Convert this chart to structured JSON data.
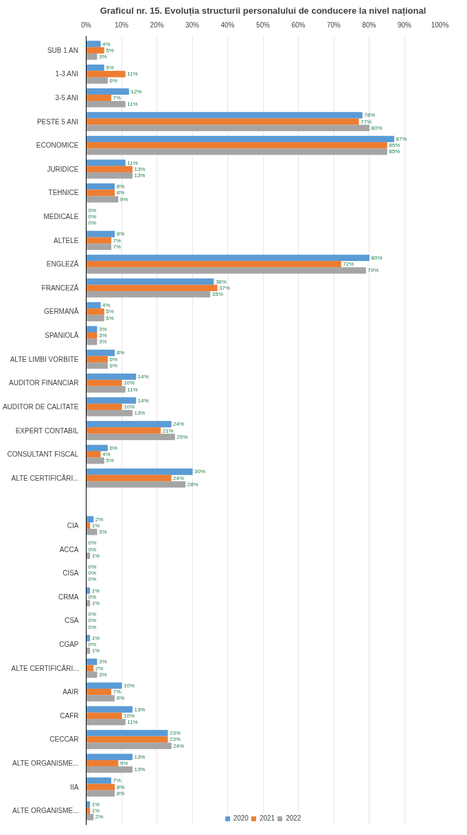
{
  "chart_data": {
    "type": "bar",
    "orientation": "horizontal",
    "title": "Graficul nr. 15. Evoluția structurii personalului de conducere la nivel național",
    "categories": [
      "SUB 1 AN",
      "1-3 ANI",
      "3-5 ANI",
      "PESTE 5 ANI",
      "ECONOMICE",
      "JURIDICE",
      "TEHNICE",
      "MEDICALE",
      "ALTELE",
      "ENGLEZĂ",
      "FRANCEZĂ",
      "GERMANĂ",
      "SPANIOLĂ",
      "ALTE LIMBI VORBITE",
      "AUDITOR FINANCIAR",
      "AUDITOR DE CALITATE",
      "EXPERT CONTABIL",
      "CONSULTANT FISCAL",
      "ALTE CERTIFICĂRI...",
      null,
      "CIA",
      "ACCA",
      "CISA",
      "CRMA",
      "CSA",
      "CGAP",
      "ALTE CERTIFICĂRI...",
      "AAIR",
      "CAFR",
      "CECCAR",
      "ALTE ORGANISME...",
      "IIA",
      "ALTE ORGANISME..."
    ],
    "series": [
      {
        "name": "2020",
        "color": "#5b9bd5",
        "values": [
          4,
          5,
          12,
          78,
          87,
          11,
          8,
          0,
          8,
          80,
          36,
          4,
          3,
          8,
          14,
          14,
          24,
          6,
          30,
          null,
          2,
          0,
          0,
          1,
          0,
          1,
          3,
          10,
          13,
          23,
          13,
          7,
          1
        ],
        "value_labels": [
          "4%",
          "5%",
          "12%",
          "78%",
          "87%",
          "11%",
          "8%",
          "0%",
          "8%",
          "80%",
          "36%",
          "4%",
          "3%",
          "8%",
          "14%",
          "14%",
          "24%",
          "6%",
          "30%",
          null,
          "2%",
          "0%",
          "0%",
          "1%",
          "0%",
          "1%",
          "3%",
          "10%",
          "13%",
          "23%",
          "13%",
          "7%",
          "1%"
        ]
      },
      {
        "name": "2021",
        "color": "#ed7d31",
        "values": [
          5,
          11,
          7,
          77,
          85,
          13,
          8,
          0,
          7,
          72,
          37,
          5,
          3,
          6,
          10,
          10,
          21,
          4,
          24,
          null,
          1,
          0,
          0,
          0,
          0,
          0,
          2,
          7,
          10,
          23,
          9,
          8,
          1
        ],
        "value_labels": [
          "5%",
          "11%",
          "7%",
          "77%",
          "85%",
          "13%",
          "8%",
          "0%",
          "7%",
          "72%",
          "37%",
          "5%",
          "3%",
          "6%",
          "10%",
          "10%",
          "21%",
          "4%",
          "24%",
          null,
          "1%",
          "0%",
          "0%",
          "0%",
          "0%",
          "0%",
          "2%",
          "7%",
          "10%",
          "23%",
          "9%",
          "8%",
          "1%"
        ]
      },
      {
        "name": "2022",
        "color": "#a5a5a5",
        "values": [
          3,
          6,
          11,
          80,
          85,
          13,
          9,
          0,
          7,
          79,
          35,
          5,
          3,
          6,
          11,
          13,
          25,
          5,
          28,
          null,
          3,
          1,
          0,
          1,
          0,
          1,
          3,
          8,
          11,
          24,
          13,
          8,
          2
        ],
        "value_labels": [
          "3%",
          "6%",
          "11%",
          "80%",
          "85%",
          "13%",
          "9%",
          "0%",
          "7%",
          "79%",
          "35%",
          "5%",
          "3%",
          "6%",
          "11%",
          "13%",
          "25%",
          "5%",
          "28%",
          null,
          "3%",
          "1%",
          "0%",
          "1%",
          "0%",
          "1%",
          "3%",
          "8%",
          "11%",
          "24%",
          "13%",
          "8%",
          "2%"
        ]
      }
    ],
    "xlim": [
      0,
      100
    ],
    "xticks": [
      {
        "value": 0,
        "label": "0%"
      },
      {
        "value": 10,
        "label": "10%"
      },
      {
        "value": 20,
        "label": "20%"
      },
      {
        "value": 30,
        "label": "30%"
      },
      {
        "value": 40,
        "label": "40%"
      },
      {
        "value": 50,
        "label": "50%"
      },
      {
        "value": 60,
        "label": "60%"
      },
      {
        "value": 70,
        "label": "70%"
      },
      {
        "value": 80,
        "label": "80%"
      },
      {
        "value": 90,
        "label": "90%"
      },
      {
        "value": 100,
        "label": "100%"
      }
    ],
    "grid": "x",
    "legend": "bottom",
    "data_labels": true
  }
}
